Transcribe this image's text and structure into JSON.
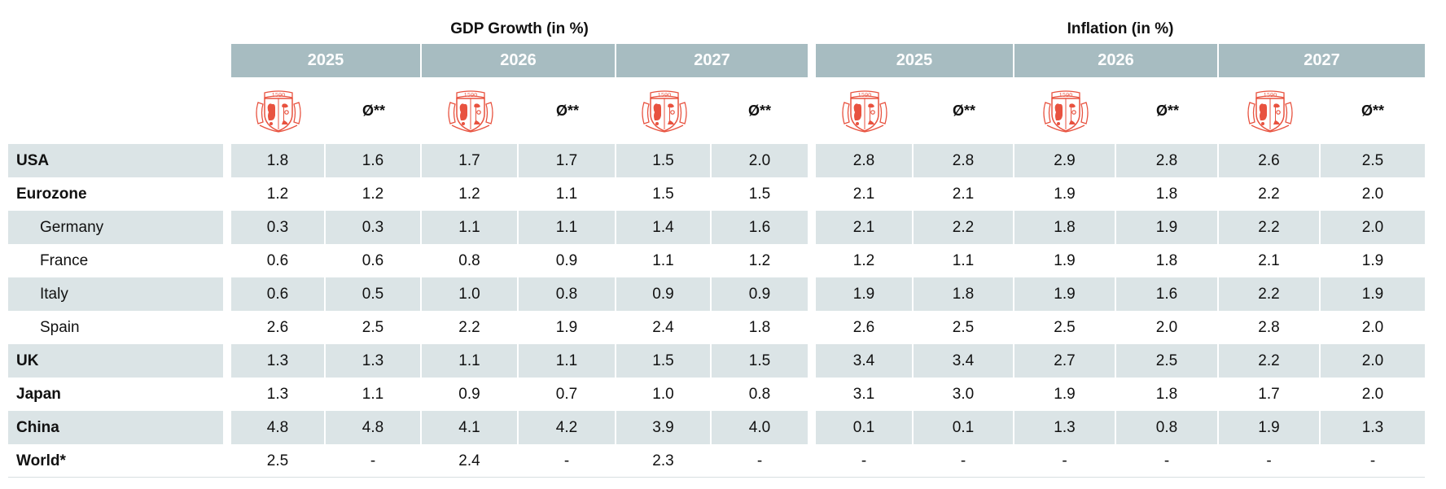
{
  "headers": {
    "gdp_title": "GDP Growth (in %)",
    "inflation_title": "Inflation (in %)",
    "years": [
      "2025",
      "2026",
      "2027"
    ],
    "avg_label": "Ø**",
    "logo_year": "1590"
  },
  "rows": [
    {
      "label": "USA",
      "gdp": [
        "1.8",
        "1.6",
        "1.7",
        "1.7",
        "1.5",
        "2.0"
      ],
      "inf": [
        "2.8",
        "2.8",
        "2.9",
        "2.8",
        "2.6",
        "2.5"
      ]
    },
    {
      "label": "Eurozone",
      "gdp": [
        "1.2",
        "1.2",
        "1.2",
        "1.1",
        "1.5",
        "1.5"
      ],
      "inf": [
        "2.1",
        "2.1",
        "1.9",
        "1.8",
        "2.2",
        "2.0"
      ]
    },
    {
      "label": "Germany",
      "gdp": [
        "0.3",
        "0.3",
        "1.1",
        "1.1",
        "1.4",
        "1.6"
      ],
      "inf": [
        "2.1",
        "2.2",
        "1.8",
        "1.9",
        "2.2",
        "2.0"
      ]
    },
    {
      "label": "France",
      "gdp": [
        "0.6",
        "0.6",
        "0.8",
        "0.9",
        "1.1",
        "1.2"
      ],
      "inf": [
        "1.2",
        "1.1",
        "1.9",
        "1.8",
        "2.1",
        "1.9"
      ]
    },
    {
      "label": "Italy",
      "gdp": [
        "0.6",
        "0.5",
        "1.0",
        "0.8",
        "0.9",
        "0.9"
      ],
      "inf": [
        "1.9",
        "1.8",
        "1.9",
        "1.6",
        "2.2",
        "1.9"
      ]
    },
    {
      "label": "Spain",
      "gdp": [
        "2.6",
        "2.5",
        "2.2",
        "1.9",
        "2.4",
        "1.8"
      ],
      "inf": [
        "2.6",
        "2.5",
        "2.5",
        "2.0",
        "2.8",
        "2.0"
      ]
    },
    {
      "label": "UK",
      "gdp": [
        "1.3",
        "1.3",
        "1.1",
        "1.1",
        "1.5",
        "1.5"
      ],
      "inf": [
        "3.4",
        "3.4",
        "2.7",
        "2.5",
        "2.2",
        "2.0"
      ]
    },
    {
      "label": "Japan",
      "gdp": [
        "1.3",
        "1.1",
        "0.9",
        "0.7",
        "1.0",
        "0.8"
      ],
      "inf": [
        "3.1",
        "3.0",
        "1.9",
        "1.8",
        "1.7",
        "2.0"
      ]
    },
    {
      "label": "China",
      "gdp": [
        "4.8",
        "4.8",
        "4.1",
        "4.2",
        "3.9",
        "4.0"
      ],
      "inf": [
        "0.1",
        "0.1",
        "1.3",
        "0.8",
        "1.9",
        "1.3"
      ]
    },
    {
      "label": "World*",
      "gdp": [
        "2.5",
        "-",
        "2.4",
        "-",
        "2.3",
        "-"
      ],
      "inf": [
        "-",
        "-",
        "-",
        "-",
        "-",
        "-"
      ]
    }
  ],
  "colors": {
    "header_bg": "#a7bcc1",
    "row_shade": "#dbe4e6",
    "logo_red": "#e8523f"
  }
}
